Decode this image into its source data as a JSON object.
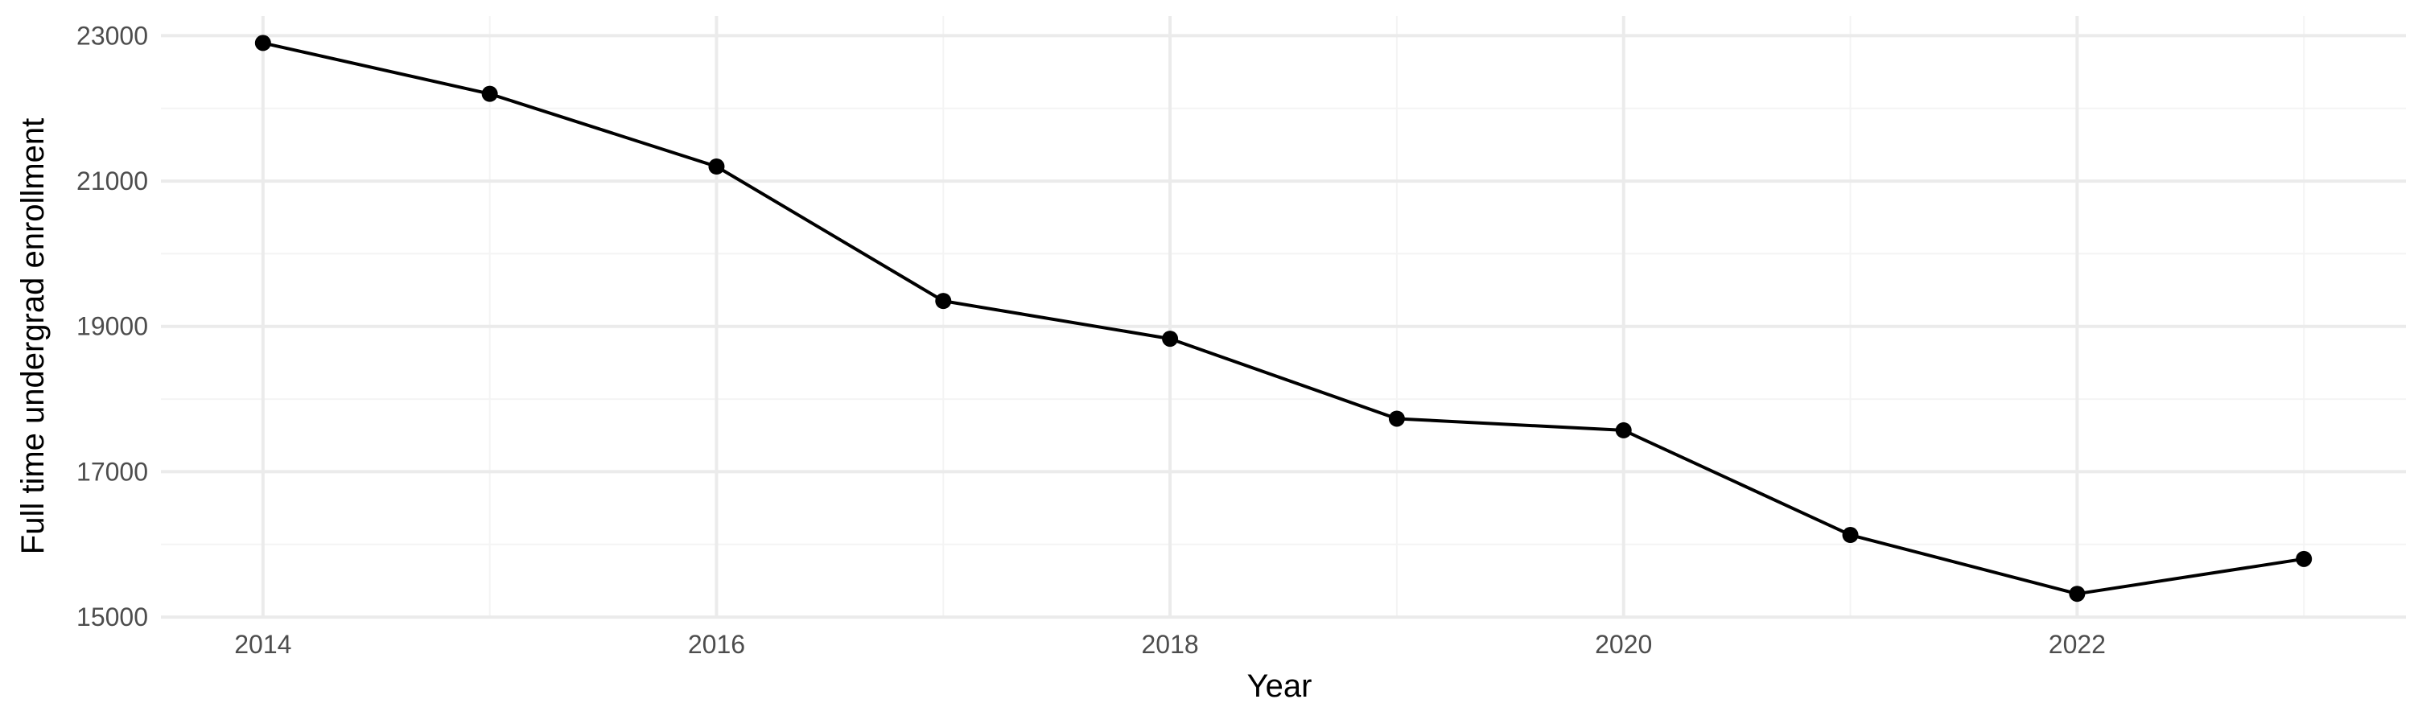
{
  "chart_data": {
    "type": "line",
    "title": "",
    "xlabel": "Year",
    "ylabel": "Full time undergrad enrollment",
    "x": [
      2014,
      2015,
      2016,
      2017,
      2018,
      2019,
      2020,
      2021,
      2022,
      2023
    ],
    "series": [
      {
        "values": [
          22900,
          22200,
          21200,
          19350,
          18830,
          17730,
          17570,
          16130,
          15320,
          15800
        ]
      }
    ],
    "xlim": [
      2013.55,
      2023.45
    ],
    "ylim": [
      14990,
      23270
    ],
    "x_major_ticks": [
      2014,
      2016,
      2018,
      2020,
      2022
    ],
    "x_tick_labels": [
      "2014",
      "2016",
      "2018",
      "2020",
      "2022"
    ],
    "x_minor_ticks": [
      2015,
      2017,
      2019,
      2021,
      2023
    ],
    "y_major_ticks": [
      15000,
      17000,
      19000,
      21000,
      23000
    ],
    "y_tick_labels": [
      "15000",
      "17000",
      "19000",
      "21000",
      "23000"
    ],
    "y_minor_ticks": [
      16000,
      18000,
      20000,
      22000
    ],
    "grid": true,
    "legend": "none",
    "colors": {
      "line": "#000000",
      "points": "#000000",
      "grid_major": "#ebebeb",
      "grid_minor": "#f4f4f4",
      "tick_text": "#4d4d4d",
      "axis_title": "#000000",
      "background": "#ffffff"
    }
  }
}
